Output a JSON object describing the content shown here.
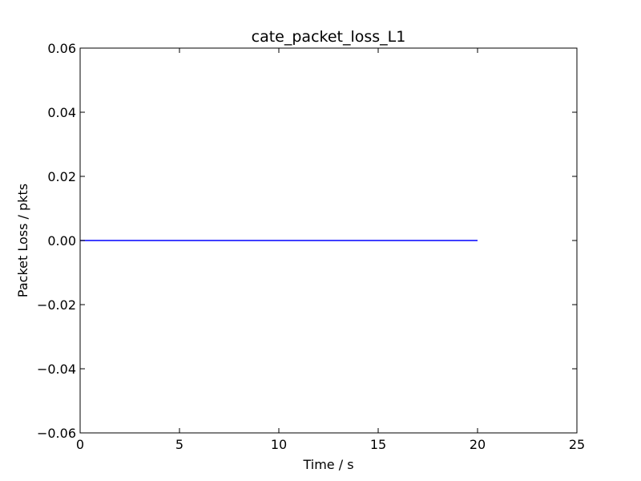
{
  "chart_data": {
    "type": "line",
    "title": "cate_packet_loss_L1",
    "xlabel": "Time / s",
    "ylabel": "Packet Loss / pkts",
    "xlim": [
      0,
      25
    ],
    "ylim": [
      -0.06,
      0.06
    ],
    "xticks": [
      0,
      5,
      10,
      15,
      20,
      25
    ],
    "xtick_labels": [
      "0",
      "5",
      "10",
      "15",
      "20",
      "25"
    ],
    "yticks": [
      -0.06,
      -0.04,
      -0.02,
      0.0,
      0.02,
      0.04,
      0.06
    ],
    "ytick_labels": [
      "−0.06",
      "−0.04",
      "−0.02",
      "0.00",
      "0.02",
      "0.04",
      "0.06"
    ],
    "grid": false,
    "series": [
      {
        "color": "#0000ff",
        "x": [
          0,
          20
        ],
        "y": [
          0,
          0
        ]
      }
    ]
  }
}
